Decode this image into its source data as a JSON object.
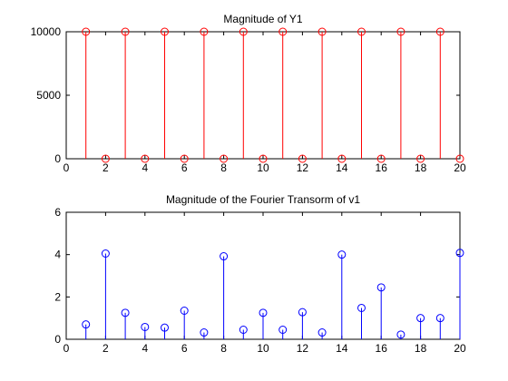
{
  "chart_data": [
    {
      "type": "stem",
      "title": "Magnitude of Y1",
      "xlabel": "",
      "ylabel": "",
      "xlim": [
        0,
        20
      ],
      "ylim": [
        0,
        10000
      ],
      "xticks": [
        0,
        2,
        4,
        6,
        8,
        10,
        12,
        14,
        16,
        18,
        20
      ],
      "yticks": [
        0,
        5000,
        10000
      ],
      "grid": false,
      "color": "#ff0000",
      "series": [
        {
          "x": [
            1,
            2,
            3,
            4,
            5,
            6,
            7,
            8,
            9,
            10,
            11,
            12,
            13,
            14,
            15,
            16,
            17,
            18,
            19,
            20
          ],
          "values": [
            10000,
            0,
            10000,
            0,
            10000,
            0,
            10000,
            0,
            10000,
            0,
            10000,
            0,
            10000,
            0,
            10000,
            0,
            10000,
            0,
            10000,
            0
          ]
        }
      ]
    },
    {
      "type": "stem",
      "title": "Magnitude of the Fourier Transorm of v1",
      "xlabel": "",
      "ylabel": "",
      "xlim": [
        0,
        20
      ],
      "ylim": [
        0,
        6
      ],
      "xticks": [
        0,
        2,
        4,
        6,
        8,
        10,
        12,
        14,
        16,
        18,
        20
      ],
      "yticks": [
        0,
        2,
        4,
        6
      ],
      "grid": false,
      "color": "#0000ff",
      "series": [
        {
          "x": [
            1,
            2,
            3,
            4,
            5,
            6,
            7,
            8,
            9,
            10,
            11,
            12,
            13,
            14,
            15,
            16,
            17,
            18,
            19,
            20
          ],
          "values": [
            0.7,
            4.05,
            1.25,
            0.58,
            0.55,
            1.35,
            0.32,
            3.92,
            0.45,
            1.25,
            0.45,
            1.28,
            0.32,
            4.0,
            1.48,
            2.45,
            0.22,
            1.0,
            1.0,
            4.08
          ]
        }
      ]
    }
  ]
}
